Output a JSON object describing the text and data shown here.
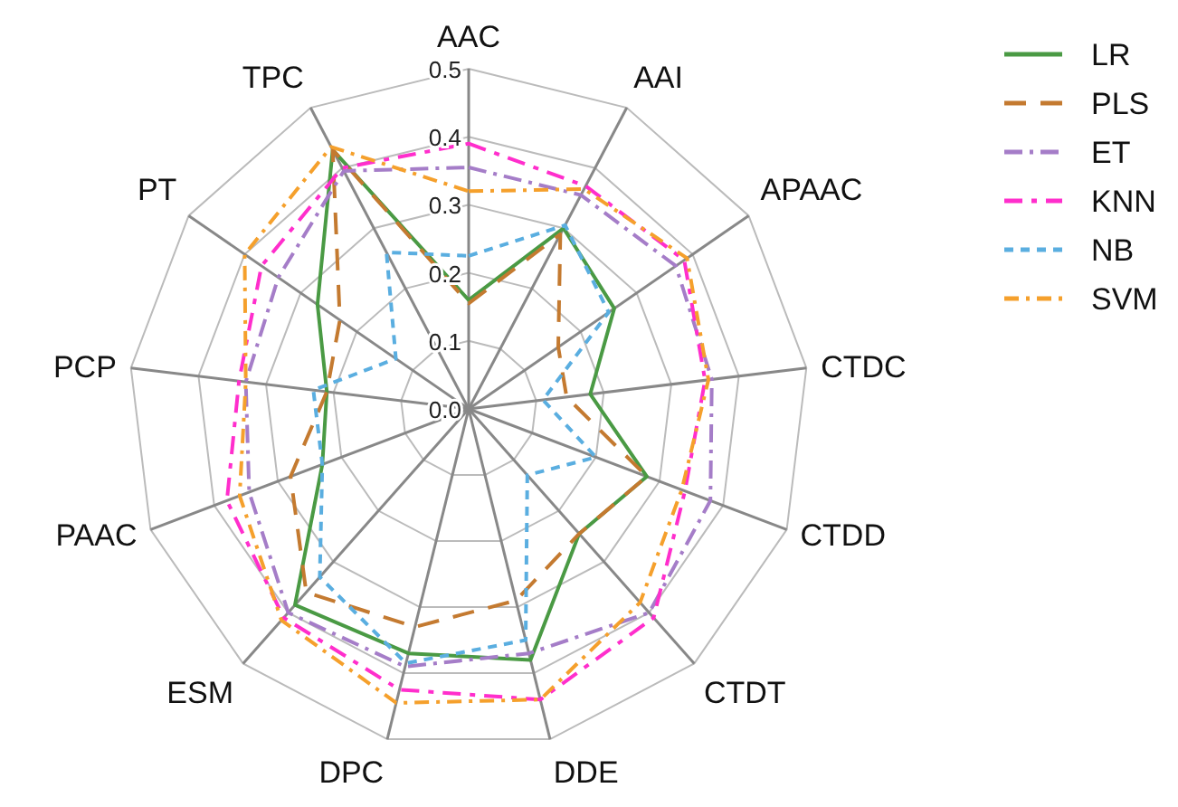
{
  "chart_data": {
    "type": "radar",
    "categories": [
      "AAC",
      "AAI",
      "APAAC",
      "CTDC",
      "CTDD",
      "CTDT",
      "DDE",
      "DPC",
      "ESM",
      "PAAC",
      "PCP",
      "PT",
      "TPC"
    ],
    "ylim": [
      0,
      0.5
    ],
    "yticks": [
      "0.0",
      0.1,
      0.2,
      0.3,
      0.4,
      0.5
    ],
    "grid": true,
    "legend": "top right",
    "series": [
      {
        "name": "LR",
        "color": "#4a9a44",
        "line_style": "solid",
        "values": [
          0.16,
          0.3,
          0.26,
          0.18,
          0.28,
          0.245,
          0.38,
          0.37,
          0.385,
          0.23,
          0.21,
          0.27,
          0.43
        ]
      },
      {
        "name": "PLS",
        "color": "#c47a30",
        "line_style": "dashed",
        "values": [
          0.155,
          0.29,
          0.16,
          0.145,
          0.28,
          0.245,
          0.29,
          0.33,
          0.36,
          0.28,
          0.21,
          0.23,
          0.43
        ]
      },
      {
        "name": "ET",
        "color": "#a57dc8",
        "line_style": "dashed",
        "values": [
          0.355,
          0.355,
          0.37,
          0.36,
          0.38,
          0.4,
          0.37,
          0.39,
          0.4,
          0.345,
          0.33,
          0.34,
          0.395
        ]
      },
      {
        "name": "KNN",
        "color": "#ff2ecc",
        "line_style": "dashed",
        "values": [
          0.39,
          0.37,
          0.385,
          0.35,
          0.34,
          0.41,
          0.44,
          0.425,
          0.41,
          0.38,
          0.34,
          0.37,
          0.4
        ]
      },
      {
        "name": "NB",
        "color": "#5aaee0",
        "line_style": "dashed",
        "values": [
          0.225,
          0.305,
          0.25,
          0.11,
          0.2,
          0.13,
          0.35,
          0.385,
          0.33,
          0.23,
          0.23,
          0.13,
          0.26
        ]
      },
      {
        "name": "SVM",
        "color": "#f5a02c",
        "line_style": "dashed",
        "values": [
          0.32,
          0.365,
          0.39,
          0.355,
          0.335,
          0.38,
          0.44,
          0.445,
          0.415,
          0.36,
          0.33,
          0.4,
          0.435
        ]
      }
    ]
  }
}
